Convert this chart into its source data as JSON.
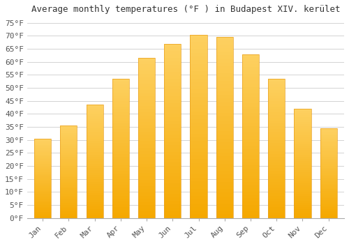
{
  "title": "Average monthly temperatures (°F ) in Budapest XIV. kerület",
  "months": [
    "Jan",
    "Feb",
    "Mar",
    "Apr",
    "May",
    "Jun",
    "Jul",
    "Aug",
    "Sep",
    "Oct",
    "Nov",
    "Dec"
  ],
  "values": [
    30.5,
    35.5,
    43.5,
    53.5,
    61.5,
    67.0,
    70.5,
    69.5,
    63.0,
    53.5,
    42.0,
    34.5
  ],
  "bar_color_bottom": "#F5A800",
  "bar_color_top": "#FDD060",
  "background_color": "#ffffff",
  "grid_color": "#cccccc",
  "ylim": [
    0,
    77
  ],
  "yticks": [
    0,
    5,
    10,
    15,
    20,
    25,
    30,
    35,
    40,
    45,
    50,
    55,
    60,
    65,
    70,
    75
  ],
  "title_fontsize": 9,
  "tick_fontsize": 8,
  "font_family": "monospace"
}
